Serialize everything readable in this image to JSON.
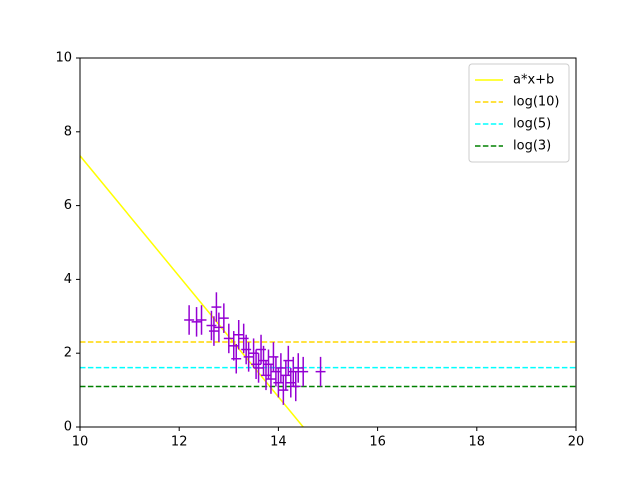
{
  "chart_data": {
    "type": "line",
    "xlim": [
      10,
      20
    ],
    "xticks": [
      10,
      12,
      14,
      16,
      18,
      20
    ],
    "ylim": [
      0,
      10
    ],
    "yticks": [
      0,
      2,
      4,
      6,
      8,
      10
    ],
    "grid": false,
    "legend": "upper right",
    "series": [
      {
        "name": "a*x+b",
        "type": "line",
        "color": "#ffff00",
        "linestyle": "solid",
        "x": [
          10,
          14.5
        ],
        "values": [
          7.35,
          0
        ]
      },
      {
        "name": "log(10)",
        "type": "line",
        "color": "#ffd700",
        "linestyle": "dashed",
        "x": [
          10,
          20
        ],
        "values": [
          2.303,
          2.303
        ]
      },
      {
        "name": "log(5)",
        "type": "line",
        "color": "#00ffff",
        "linestyle": "dashed",
        "x": [
          10,
          20
        ],
        "values": [
          1.609,
          1.609
        ]
      },
      {
        "name": "log(3)",
        "type": "line",
        "color": "#008000",
        "linestyle": "dashed",
        "x": [
          10,
          20
        ],
        "values": [
          1.099,
          1.099
        ]
      },
      {
        "type": "errorbar",
        "color": "#9400d3",
        "xerr": 0.1,
        "yerr": 0.4,
        "x": [
          12.2,
          12.35,
          12.45,
          12.65,
          12.75,
          12.8,
          12.9,
          12.7,
          13.0,
          13.1,
          13.15,
          13.2,
          13.3,
          13.35,
          13.4,
          13.5,
          13.55,
          13.6,
          13.65,
          13.7,
          13.75,
          13.8,
          13.85,
          13.9,
          13.95,
          14.0,
          14.05,
          14.1,
          14.15,
          14.2,
          14.25,
          14.3,
          14.35,
          14.4,
          14.5,
          14.85
        ],
        "values": [
          2.9,
          2.85,
          2.9,
          2.75,
          3.25,
          2.7,
          2.95,
          2.6,
          2.4,
          2.2,
          1.85,
          2.5,
          2.4,
          2.1,
          1.9,
          2.0,
          1.7,
          1.6,
          2.1,
          1.8,
          1.4,
          1.7,
          1.3,
          1.9,
          1.5,
          1.2,
          1.6,
          1.0,
          1.4,
          1.8,
          1.2,
          1.5,
          1.1,
          1.6,
          1.5,
          1.5
        ]
      }
    ]
  }
}
